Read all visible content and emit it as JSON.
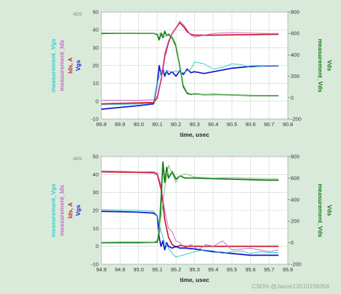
{
  "watermark": "CSDN @Jason13510238356",
  "colors": {
    "background": "#d9eadb",
    "plot_bg": "#ffffff",
    "grid": "#c9d5c9",
    "Vgs": "#1a1acc",
    "measurement_Vgs": "#33cccc",
    "Ids": "#cc2233",
    "measurement_Ids": "#cc66cc",
    "Vds": "#157a15",
    "measurement_Vds": "#80c080"
  },
  "chart_data": [
    {
      "type": "line",
      "badge": "ADS",
      "xlabel": "time, usec",
      "xlim": [
        89.8,
        90.8
      ],
      "x_ticks": [
        "89.8",
        "89.9",
        "90.0",
        "90.1",
        "90.2",
        "90.3",
        "90.4",
        "90.5",
        "90.6",
        "90.7",
        "90.8"
      ],
      "ylim_left": [
        -10,
        50
      ],
      "y_ticks_left": [
        "-10",
        "0",
        "10",
        "20",
        "30",
        "40",
        "50"
      ],
      "ylim_right": [
        -200,
        800
      ],
      "y_ticks_right": [
        "-200",
        "0",
        "200",
        "400",
        "600",
        "800"
      ],
      "left_axis_labels": [
        {
          "text": "measurement_Vgs",
          "color": "#33cccc"
        },
        {
          "text": "measurement_Ids",
          "color": "#cc66cc"
        },
        {
          "text": "Ids, A",
          "color": "#cc2233"
        },
        {
          "text": "Vgs",
          "color": "#1a1acc"
        }
      ],
      "right_axis_labels": [
        {
          "text": "measurement_Vds",
          "color": "#157a15"
        },
        {
          "text": "Vds",
          "color": "#157a15"
        }
      ],
      "series": [
        {
          "name": "Vgs",
          "axis": "left",
          "color": "#1a1acc",
          "width": 1.8,
          "x": [
            89.8,
            89.9,
            90.0,
            90.08,
            90.1,
            90.11,
            90.12,
            90.13,
            90.14,
            90.15,
            90.16,
            90.18,
            90.2,
            90.22,
            90.24,
            90.26,
            90.28,
            90.3,
            90.35,
            90.4,
            90.5,
            90.6,
            90.7,
            90.75
          ],
          "y": [
            -4.5,
            -3.5,
            -2.5,
            -1.5,
            10,
            20,
            15,
            18,
            14,
            17,
            15,
            16.5,
            14,
            17,
            15,
            18,
            16,
            16.5,
            15.5,
            16.5,
            18.5,
            19.5,
            19.8,
            19.8
          ]
        },
        {
          "name": "measurement_Vgs",
          "axis": "left",
          "color": "#33cccc",
          "width": 1.0,
          "x": [
            89.8,
            89.9,
            90.0,
            90.08,
            90.1,
            90.12,
            90.14,
            90.16,
            90.18,
            90.2,
            90.24,
            90.28,
            90.3,
            90.35,
            90.4,
            90.45,
            90.5,
            90.55,
            90.6,
            90.65,
            90.7,
            90.75
          ],
          "y": [
            -2,
            -1.8,
            -1.6,
            -1,
            10,
            17,
            16,
            17,
            16.5,
            17,
            16,
            18,
            22,
            21,
            18,
            19,
            21,
            20.5,
            19,
            19.5,
            20,
            19.8
          ]
        },
        {
          "name": "Ids",
          "axis": "left",
          "color": "#cc2233",
          "width": 1.8,
          "x": [
            89.8,
            89.9,
            90.0,
            90.08,
            90.1,
            90.12,
            90.14,
            90.16,
            90.18,
            90.2,
            90.22,
            90.24,
            90.26,
            90.28,
            90.3,
            90.35,
            90.4,
            90.5,
            90.6,
            90.7,
            90.75
          ],
          "y": [
            -1.5,
            -1.2,
            -1,
            -0.8,
            2,
            12,
            25,
            33,
            38,
            41,
            44,
            42,
            39,
            37.5,
            37,
            37,
            37,
            37.2,
            37.3,
            37.5,
            37.5
          ]
        },
        {
          "name": "measurement_Ids",
          "axis": "left",
          "color": "#cc66cc",
          "width": 1.0,
          "x": [
            89.8,
            89.9,
            90.0,
            90.08,
            90.1,
            90.12,
            90.14,
            90.16,
            90.18,
            90.2,
            90.22,
            90.24,
            90.26,
            90.28,
            90.3,
            90.35,
            90.4,
            90.5,
            90.6,
            90.7,
            90.75
          ],
          "y": [
            0.5,
            0.5,
            0.5,
            0.8,
            3,
            13,
            27,
            34,
            38,
            41,
            45,
            43,
            40,
            37,
            36,
            37,
            38,
            38.5,
            38.2,
            38,
            38
          ]
        },
        {
          "name": "Vds",
          "axis": "right",
          "color": "#157a15",
          "width": 1.8,
          "x": [
            89.8,
            89.9,
            90.0,
            90.08,
            90.1,
            90.11,
            90.12,
            90.13,
            90.14,
            90.15,
            90.16,
            90.18,
            90.2,
            90.22,
            90.24,
            90.26,
            90.28,
            90.3,
            90.35,
            90.4,
            90.5,
            90.6,
            90.7,
            90.75
          ],
          "y": [
            600,
            602,
            602,
            600,
            590,
            540,
            600,
            560,
            620,
            580,
            590,
            560,
            480,
            300,
            100,
            40,
            30,
            35,
            28,
            30,
            25,
            20,
            18,
            18
          ]
        },
        {
          "name": "measurement_Vds",
          "axis": "right",
          "color": "#80c080",
          "width": 1.0,
          "x": [
            89.8,
            89.9,
            90.0,
            90.08,
            90.1,
            90.12,
            90.14,
            90.16,
            90.18,
            90.2,
            90.22,
            90.24,
            90.26,
            90.28,
            90.3,
            90.35,
            90.4,
            90.5,
            90.6,
            90.7,
            90.75
          ],
          "y": [
            605,
            605,
            605,
            600,
            580,
            610,
            570,
            600,
            570,
            500,
            320,
            120,
            50,
            35,
            30,
            30,
            28,
            25,
            22,
            20,
            20
          ]
        }
      ]
    },
    {
      "type": "line",
      "badge": "ADS",
      "xlabel": "time, usec",
      "xlim": [
        94.8,
        95.8
      ],
      "x_ticks": [
        "94.8",
        "94.9",
        "95.0",
        "95.1",
        "95.2",
        "95.3",
        "95.4",
        "95.5",
        "95.6",
        "95.7",
        "95.8"
      ],
      "ylim_left": [
        -10,
        50
      ],
      "y_ticks_left": [
        "-10",
        "0",
        "10",
        "20",
        "30",
        "40",
        "50"
      ],
      "ylim_right": [
        -200,
        800
      ],
      "y_ticks_right": [
        "-200",
        "0",
        "200",
        "400",
        "600",
        "800"
      ],
      "left_axis_labels": [
        {
          "text": "measurement_Vgs",
          "color": "#33cccc"
        },
        {
          "text": "measurement_Ids",
          "color": "#cc66cc"
        },
        {
          "text": "Ids, A",
          "color": "#cc2233"
        },
        {
          "text": "Vgs",
          "color": "#1a1acc"
        }
      ],
      "right_axis_labels": [
        {
          "text": "measurement_Vds",
          "color": "#157a15"
        },
        {
          "text": "Vds",
          "color": "#157a15"
        }
      ],
      "series": [
        {
          "name": "Ids",
          "axis": "left",
          "color": "#cc2233",
          "width": 1.8,
          "x": [
            94.8,
            94.9,
            95.0,
            95.08,
            95.1,
            95.12,
            95.14,
            95.16,
            95.18,
            95.2,
            95.22,
            95.25,
            95.3,
            95.4,
            95.5,
            95.6,
            95.7,
            95.75
          ],
          "y": [
            41.5,
            41.3,
            41.2,
            41,
            40,
            32,
            15,
            5,
            1,
            -0.5,
            0.5,
            0,
            0,
            0,
            0,
            0,
            0,
            0
          ]
        },
        {
          "name": "measurement_Ids",
          "axis": "left",
          "color": "#cc66cc",
          "width": 1.0,
          "x": [
            94.8,
            94.9,
            95.0,
            95.08,
            95.1,
            95.12,
            95.14,
            95.16,
            95.18,
            95.2,
            95.22,
            95.25,
            95.28,
            95.32,
            95.36,
            95.4,
            95.45,
            95.5,
            95.6,
            95.7,
            95.75
          ],
          "y": [
            42,
            41.8,
            41.5,
            41.5,
            41,
            34,
            20,
            10,
            8,
            3,
            2,
            -1,
            1,
            -2,
            1,
            0,
            3,
            -2,
            -1,
            -3,
            -2
          ]
        },
        {
          "name": "Vgs",
          "axis": "left",
          "color": "#1a1acc",
          "width": 1.8,
          "x": [
            94.8,
            94.9,
            95.0,
            95.08,
            95.1,
            95.11,
            95.12,
            95.13,
            95.14,
            95.15,
            95.16,
            95.18,
            95.2,
            95.22,
            95.25,
            95.3,
            95.4,
            95.5,
            95.6,
            95.7,
            95.75
          ],
          "y": [
            19.5,
            19.3,
            19,
            18.5,
            17,
            5,
            0,
            3,
            -2,
            2,
            0,
            -1,
            0,
            -1,
            -1,
            -1.5,
            -3,
            -4,
            -5,
            -5,
            -5
          ]
        },
        {
          "name": "measurement_Vgs",
          "axis": "left",
          "color": "#33cccc",
          "width": 1.0,
          "x": [
            94.8,
            94.9,
            95.0,
            95.08,
            95.1,
            95.12,
            95.14,
            95.16,
            95.18,
            95.2,
            95.25,
            95.3,
            95.35,
            95.4,
            95.45,
            95.5,
            95.55,
            95.6,
            95.65,
            95.7,
            95.75
          ],
          "y": [
            20.5,
            20.2,
            20,
            19.5,
            17,
            8,
            2,
            -1,
            -4,
            -6,
            -4.5,
            -3,
            -2,
            -2.5,
            -4,
            -3,
            -2.5,
            -4,
            -3,
            -3.5,
            -3.5
          ]
        },
        {
          "name": "Vds",
          "axis": "right",
          "color": "#157a15",
          "width": 1.8,
          "x": [
            94.8,
            94.9,
            95.0,
            95.08,
            95.1,
            95.11,
            95.12,
            95.13,
            95.14,
            95.15,
            95.16,
            95.18,
            95.2,
            95.22,
            95.25,
            95.3,
            95.4,
            95.5,
            95.6,
            95.7,
            95.75
          ],
          "y": [
            0,
            2,
            2,
            2,
            5,
            100,
            400,
            750,
            560,
            700,
            600,
            660,
            590,
            620,
            600,
            600,
            595,
            590,
            585,
            580,
            580
          ]
        },
        {
          "name": "measurement_Vds",
          "axis": "right",
          "color": "#80c080",
          "width": 1.0,
          "x": [
            94.8,
            94.9,
            95.0,
            95.08,
            95.1,
            95.12,
            95.14,
            95.16,
            95.18,
            95.2,
            95.22,
            95.25,
            95.3,
            95.4,
            95.5,
            95.6,
            95.7,
            95.75
          ],
          "y": [
            -5,
            -5,
            -5,
            0,
            30,
            250,
            500,
            720,
            640,
            560,
            620,
            640,
            610,
            600,
            605,
            600,
            595,
            590
          ]
        }
      ]
    }
  ]
}
